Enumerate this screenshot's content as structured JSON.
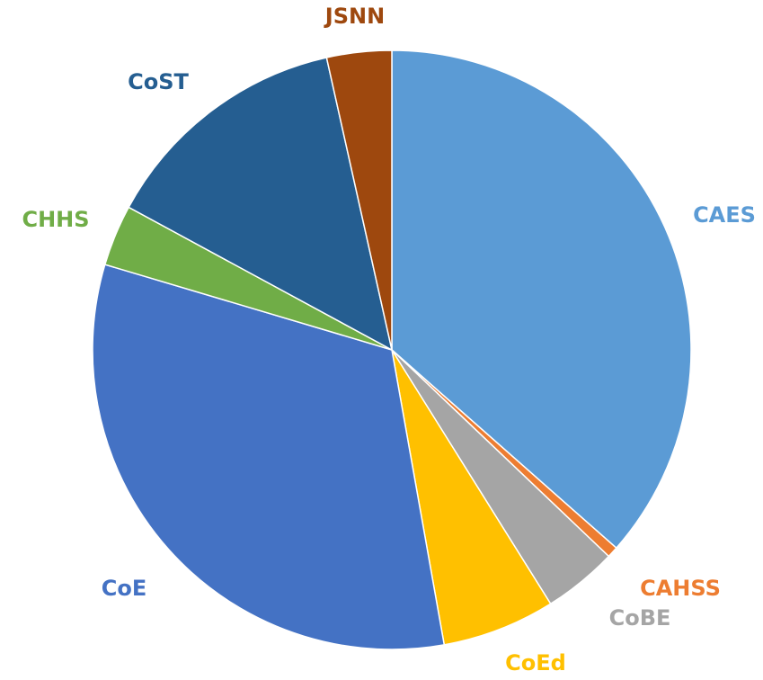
{
  "chart_data": {
    "type": "pie",
    "categories": [
      "CAES",
      "CAHSS",
      "CoBE",
      "CoEd",
      "CoE",
      "CHHS",
      "CoST",
      "JSNN"
    ],
    "values": [
      36.5,
      0.6,
      4,
      6.1,
      32.4,
      3.3,
      13.6,
      3.5
    ],
    "colors": [
      "#5b9bd5",
      "#ed7d31",
      "#a5a5a5",
      "#ffc000",
      "#4472c4",
      "#70ad47",
      "#255e91",
      "#9e480e"
    ]
  }
}
